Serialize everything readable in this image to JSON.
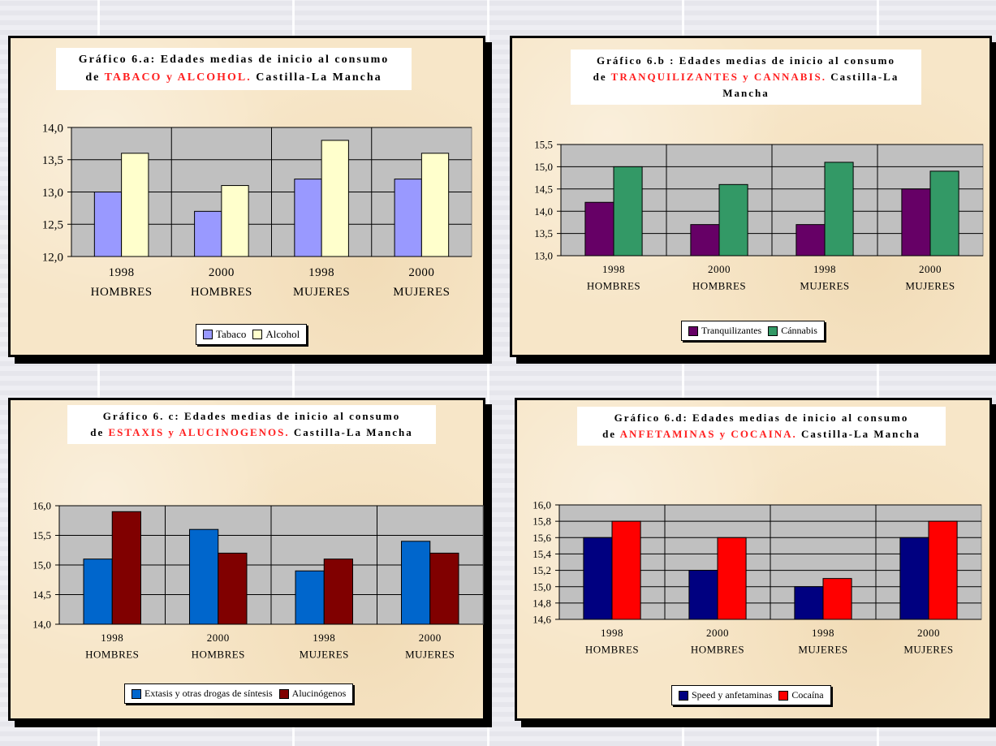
{
  "charts": [
    {
      "title_line1": "Gráfico 6.a: Edades medias de inicio al consumo",
      "title_prefix": "de ",
      "title_red": "TABACO y ALCOHOL.",
      "title_suffix": " Castilla-La Mancha",
      "legend": [
        "Tabaco",
        "Alcohol"
      ]
    },
    {
      "title_line1": "Gráfico 6.b  : Edades medias de inicio al consumo",
      "title_prefix": "de ",
      "title_red": "TRANQUILIZANTES y CANNABIS.",
      "title_suffix": " Castilla-La Mancha",
      "legend": [
        "Tranquilizantes",
        "Cánnabis"
      ]
    },
    {
      "title_line1": "Gráfico 6. c: Edades medias de inicio al consumo",
      "title_prefix": "de ",
      "title_red": "ESTAXIS y ALUCINOGENOS.",
      "title_suffix": " Castilla-La Mancha",
      "legend": [
        "Extasis y otras drogas de síntesis",
        "Alucinógenos"
      ]
    },
    {
      "title_line1": "Gráfico 6.d: Edades medias de inicio al consumo",
      "title_prefix": "de ",
      "title_red": "ANFETAMINAS y COCAINA.",
      "title_suffix": " Castilla-La Mancha",
      "legend": [
        "Speed y anfetaminas",
        "Cocaína"
      ]
    }
  ],
  "chart_data": [
    {
      "type": "bar",
      "title": "Gráfico 6.a: Edades medias de inicio al consumo de TABACO y ALCOHOL. Castilla-La Mancha",
      "categories": [
        [
          "1998",
          "HOMBRES"
        ],
        [
          "2000",
          "HOMBRES"
        ],
        [
          "1998",
          "MUJERES"
        ],
        [
          "2000",
          "MUJERES"
        ]
      ],
      "series": [
        {
          "name": "Tabaco",
          "values": [
            13.0,
            12.7,
            13.2,
            13.2
          ],
          "color": "#9999ff"
        },
        {
          "name": "Alcohol",
          "values": [
            13.6,
            13.1,
            13.8,
            13.6
          ],
          "color": "#ffffcc"
        }
      ],
      "ylim": [
        12.0,
        14.0
      ],
      "yticks": [
        "12,0",
        "12,5",
        "13,0",
        "13,5",
        "14,0"
      ],
      "grid": true,
      "legend_position": "bottom"
    },
    {
      "type": "bar",
      "title": "Gráfico 6.b : Edades medias de inicio al consumo de TRANQUILIZANTES y CANNABIS. Castilla-La Mancha",
      "categories": [
        [
          "1998",
          "HOMBRES"
        ],
        [
          "2000",
          "HOMBRES"
        ],
        [
          "1998",
          "MUJERES"
        ],
        [
          "2000",
          "MUJERES"
        ]
      ],
      "series": [
        {
          "name": "Tranquilizantes",
          "values": [
            14.2,
            13.7,
            13.7,
            14.5
          ],
          "color": "#660066"
        },
        {
          "name": "Cánnabis",
          "values": [
            15.0,
            14.6,
            15.1,
            14.9
          ],
          "color": "#339966"
        }
      ],
      "ylim": [
        13.0,
        15.5
      ],
      "yticks": [
        "13,0",
        "13,5",
        "14,0",
        "14,5",
        "15,0",
        "15,5"
      ],
      "grid": true,
      "legend_position": "bottom"
    },
    {
      "type": "bar",
      "title": "Gráfico 6. c: Edades medias de inicio al consumo de ESTAXIS y ALUCINOGENOS. Castilla-La Mancha",
      "categories": [
        [
          "1998",
          "HOMBRES"
        ],
        [
          "2000",
          "HOMBRES"
        ],
        [
          "1998",
          "MUJERES"
        ],
        [
          "2000",
          "MUJERES"
        ]
      ],
      "series": [
        {
          "name": "Extasis y otras drogas de síntesis",
          "values": [
            15.1,
            15.6,
            14.9,
            15.4
          ],
          "color": "#0066cc"
        },
        {
          "name": "Alucinógenos",
          "values": [
            15.9,
            15.2,
            15.1,
            15.2
          ],
          "color": "#800000"
        }
      ],
      "ylim": [
        14.0,
        16.0
      ],
      "yticks": [
        "14,0",
        "14,5",
        "15,0",
        "15,5",
        "16,0"
      ],
      "grid": true,
      "legend_position": "bottom"
    },
    {
      "type": "bar",
      "title": "Gráfico 6.d: Edades medias de inicio al consumo de ANFETAMINAS y COCAINA. Castilla-La Mancha",
      "categories": [
        [
          "1998",
          "HOMBRES"
        ],
        [
          "2000",
          "HOMBRES"
        ],
        [
          "1998",
          "MUJERES"
        ],
        [
          "2000",
          "MUJERES"
        ]
      ],
      "series": [
        {
          "name": "Speed y anfetaminas",
          "values": [
            15.6,
            15.2,
            15.0,
            15.6
          ],
          "color": "#000080"
        },
        {
          "name": "Cocaína",
          "values": [
            15.8,
            15.6,
            15.1,
            15.8
          ],
          "color": "#ff0000"
        }
      ],
      "ylim": [
        14.6,
        16.0
      ],
      "yticks": [
        "14,6",
        "14,8",
        "15,0",
        "15,2",
        "15,4",
        "15,6",
        "15,8",
        "16,0"
      ],
      "grid": true,
      "legend_position": "bottom"
    }
  ]
}
